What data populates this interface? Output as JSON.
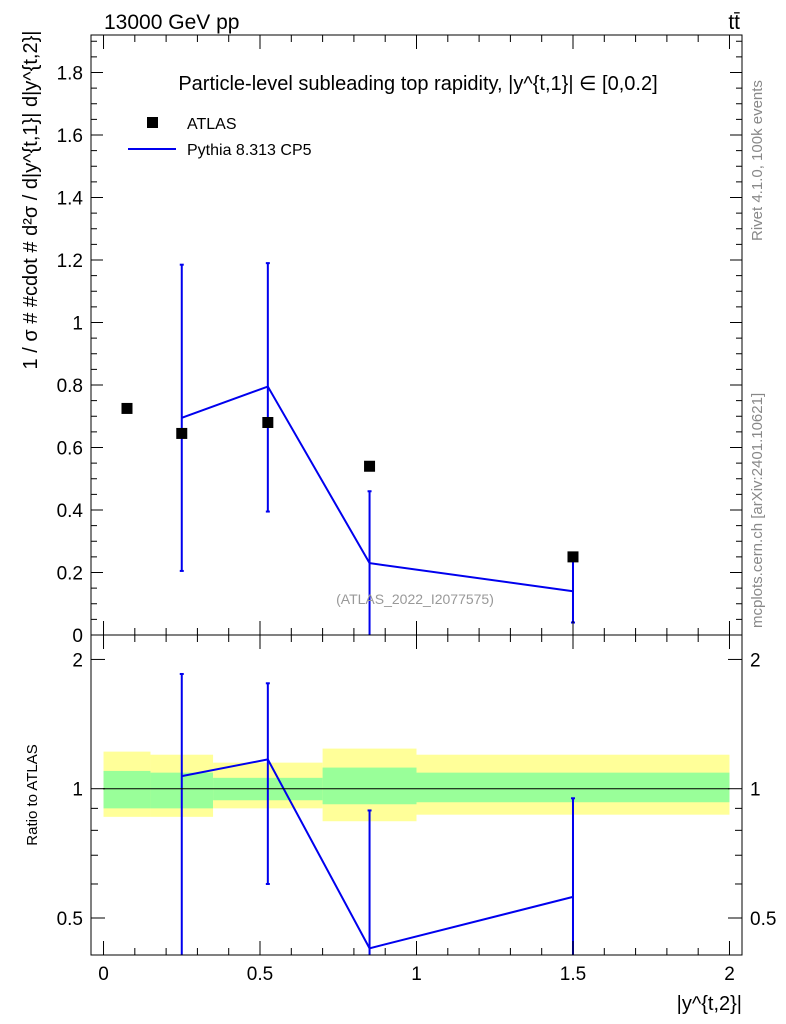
{
  "header": {
    "left": "13000 GeV pp",
    "right": "tt̄"
  },
  "side_labels": {
    "rivet": "Rivet 4.1.0,  100k events",
    "mcplots": "mcplots.cern.ch [arXiv:2401.10621]"
  },
  "colors": {
    "data": "#000000",
    "mc": "#0000ee",
    "band_inner": "#99ff99",
    "band_outer": "#ffff99"
  },
  "chart_data": [
    {
      "type": "scatter",
      "panel": "main",
      "title": "Particle-level subleading top rapidity, |y^{t,1}| ∈ [0,0.2]",
      "xlabel": "",
      "ylabel": "1 / σ # #cdot # d²σ / d|y^{t,1}| d|y^{t,2}|",
      "xlim": [
        -0.04,
        2.04
      ],
      "ylim": [
        0,
        1.92
      ],
      "yticks": [
        0,
        0.2,
        0.4,
        0.6,
        0.8,
        1,
        1.2,
        1.4,
        1.6,
        1.8
      ],
      "watermark": "(ATLAS_2022_I2077575)",
      "legend_position": "top-left",
      "bins": [
        [
          0,
          0.15
        ],
        [
          0.15,
          0.35
        ],
        [
          0.35,
          0.7
        ],
        [
          0.7,
          1.0
        ],
        [
          1.0,
          2.0
        ]
      ],
      "series": [
        {
          "name": "ATLAS",
          "style": "markers",
          "x": [
            0.075,
            0.25,
            0.525,
            0.85,
            1.5
          ],
          "y": [
            0.725,
            0.645,
            0.68,
            0.54,
            0.25
          ]
        },
        {
          "name": "Pythia 8.313 CP5",
          "style": "line",
          "x": [
            0.25,
            0.525,
            0.85,
            1.5
          ],
          "y": [
            0.695,
            0.795,
            0.23,
            0.14
          ],
          "err_low": [
            0.205,
            0.395,
            0.0,
            0.04
          ],
          "err_high": [
            1.185,
            1.19,
            0.46,
            0.245
          ]
        }
      ]
    },
    {
      "type": "line",
      "panel": "ratio",
      "xlabel": "|y^{t,2}|",
      "ylabel": "Ratio to ATLAS",
      "xlim": [
        -0.04,
        2.04
      ],
      "ylim": [
        0.41,
        2.28
      ],
      "xticks": [
        0,
        0.5,
        1,
        1.5,
        2
      ],
      "yticks": [
        0.5,
        1,
        2
      ],
      "reference": 1,
      "bands": {
        "bins": [
          [
            0,
            0.15
          ],
          [
            0.15,
            0.35
          ],
          [
            0.35,
            0.7
          ],
          [
            0.7,
            1.0
          ],
          [
            1.0,
            2.0
          ]
        ],
        "inner_low": [
          0.9,
          0.9,
          0.94,
          0.92,
          0.93
        ],
        "inner_high": [
          1.1,
          1.09,
          1.06,
          1.12,
          1.09
        ],
        "outer_low": [
          0.86,
          0.86,
          0.9,
          0.84,
          0.87
        ],
        "outer_high": [
          1.22,
          1.2,
          1.15,
          1.24,
          1.2
        ]
      },
      "series": [
        {
          "name": "Pythia 8.313 CP5",
          "x": [
            0.25,
            0.525,
            0.85,
            1.5
          ],
          "y": [
            1.07,
            1.17,
            0.425,
            0.56
          ],
          "err_low": [
            0.3,
            0.6,
            0.3,
            0.3
          ],
          "err_high": [
            1.85,
            1.76,
            0.89,
            0.95
          ]
        }
      ]
    }
  ]
}
